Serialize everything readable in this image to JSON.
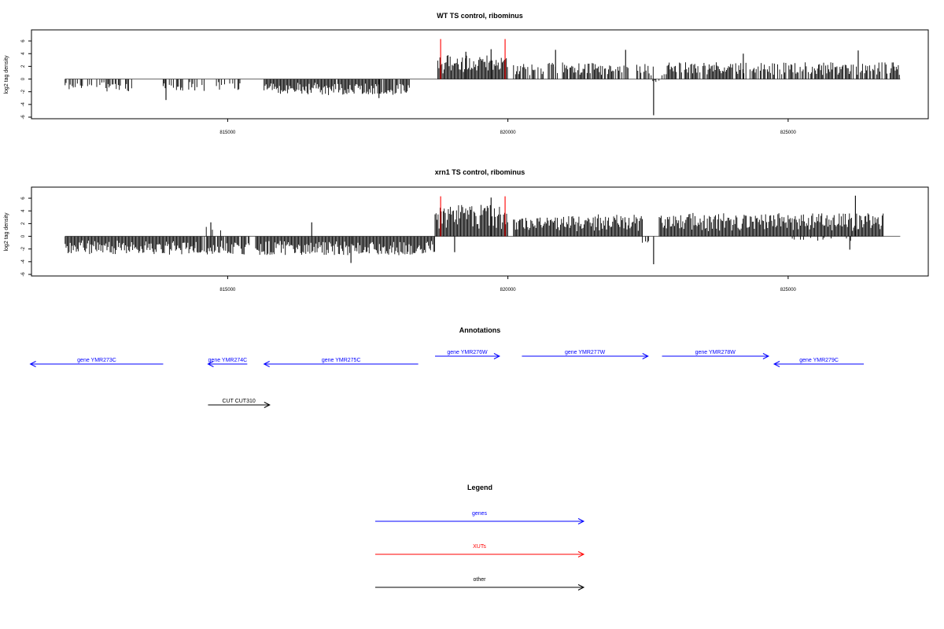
{
  "colors": {
    "gene": "#0000ff",
    "xut": "#ff0000",
    "other": "#000000",
    "bar": "#000000"
  },
  "chart_data": [
    {
      "type": "bar",
      "title": "WT TS control, ribominus",
      "ylabel": "log2 tag density",
      "ylim": [
        -6,
        7
      ],
      "yticks": [
        -6,
        -4,
        -2,
        0,
        2,
        4,
        6
      ],
      "xlim": [
        811500,
        827500
      ],
      "xticks": [
        815000,
        820000,
        825000
      ],
      "xtick_labels": [
        "815000",
        "820000",
        "825000"
      ],
      "baseline_range": [
        812100,
        827000
      ],
      "markers": [
        {
          "x": 818800,
          "y": 6.3,
          "color": "#ff0000"
        },
        {
          "x": 819950,
          "y": 6.3,
          "color": "#ff0000"
        }
      ],
      "segments": [
        {
          "start": 812100,
          "end": 813300,
          "sign": -1,
          "mag": 1.7,
          "density": 0.55,
          "seed": 11
        },
        {
          "start": 813850,
          "end": 814600,
          "sign": -1,
          "mag": 1.7,
          "density": 0.45,
          "seed": 12
        },
        {
          "start": 814800,
          "end": 815300,
          "sign": -1,
          "mag": 1.5,
          "density": 0.35,
          "seed": 13
        },
        {
          "start": 815650,
          "end": 818250,
          "sign": -1,
          "mag": 2.2,
          "density": 0.95,
          "seed": 14
        },
        {
          "start": 818750,
          "end": 820000,
          "sign": 1,
          "mag": 3.3,
          "density": 1.0,
          "seed": 15
        },
        {
          "start": 820100,
          "end": 822150,
          "sign": 1,
          "mag": 2.3,
          "density": 0.7,
          "seed": 16
        },
        {
          "start": 822300,
          "end": 822600,
          "sign": 1,
          "mag": 2.2,
          "density": 0.5,
          "seed": 17
        },
        {
          "start": 822550,
          "end": 822700,
          "sign": -1,
          "mag": 0.5,
          "density": 0.2,
          "seed": 18
        },
        {
          "start": 822750,
          "end": 827000,
          "sign": 1,
          "mag": 2.3,
          "density": 0.75,
          "seed": 19
        }
      ],
      "spikes": [
        {
          "x": 822600,
          "y": -5.7
        },
        {
          "x": 813900,
          "y": -3.3
        },
        {
          "x": 817700,
          "y": -3.0
        },
        {
          "x": 819250,
          "y": 4.3
        },
        {
          "x": 819700,
          "y": 4.7
        },
        {
          "x": 820850,
          "y": 4.6
        },
        {
          "x": 822100,
          "y": 4.6
        },
        {
          "x": 824200,
          "y": 4.0
        },
        {
          "x": 826250,
          "y": 4.5
        }
      ]
    },
    {
      "type": "bar",
      "title": "xrn1 TS control, ribominus",
      "ylabel": "log2 tag density",
      "ylim": [
        -6,
        7
      ],
      "yticks": [
        -6,
        -4,
        -2,
        0,
        2,
        4,
        6
      ],
      "xlim": [
        811500,
        827500
      ],
      "xticks": [
        815000,
        820000,
        825000
      ],
      "xtick_labels": [
        "815000",
        "820000",
        "825000"
      ],
      "baseline_range": [
        812100,
        827000
      ],
      "markers": [
        {
          "x": 818800,
          "y": 6.3,
          "color": "#ff0000"
        },
        {
          "x": 819950,
          "y": 6.3,
          "color": "#ff0000"
        }
      ],
      "segments": [
        {
          "start": 812100,
          "end": 814400,
          "sign": -1,
          "mag": 2.5,
          "density": 1.0,
          "seed": 21
        },
        {
          "start": 814400,
          "end": 815400,
          "sign": -1,
          "mag": 2.5,
          "density": 0.9,
          "seed": 22
        },
        {
          "start": 814400,
          "end": 814900,
          "sign": 1,
          "mag": 1.5,
          "density": 0.2,
          "seed": 23
        },
        {
          "start": 815500,
          "end": 818700,
          "sign": -1,
          "mag": 2.6,
          "density": 1.0,
          "seed": 24
        },
        {
          "start": 818700,
          "end": 820000,
          "sign": 1,
          "mag": 4.3,
          "density": 1.0,
          "seed": 25
        },
        {
          "start": 820100,
          "end": 822400,
          "sign": 1,
          "mag": 3.0,
          "density": 1.0,
          "seed": 26
        },
        {
          "start": 822700,
          "end": 826700,
          "sign": 1,
          "mag": 3.2,
          "density": 1.0,
          "seed": 27
        },
        {
          "start": 822400,
          "end": 822700,
          "sign": -1,
          "mag": 1.0,
          "density": 0.3,
          "seed": 28
        },
        {
          "start": 824800,
          "end": 826500,
          "sign": -1,
          "mag": 0.8,
          "density": 0.15,
          "seed": 29
        }
      ],
      "spikes": [
        {
          "x": 822600,
          "y": -4.4
        },
        {
          "x": 819050,
          "y": -2.5
        },
        {
          "x": 816500,
          "y": 2.2
        },
        {
          "x": 814700,
          "y": 2.2
        },
        {
          "x": 817200,
          "y": -4.2
        },
        {
          "x": 826200,
          "y": 6.4
        },
        {
          "x": 819700,
          "y": 6.1
        },
        {
          "x": 826100,
          "y": -2.1
        }
      ]
    },
    {
      "type": "table",
      "title": "Annotations",
      "xlim": [
        811500,
        827500
      ],
      "features": [
        {
          "name": "gene YMR273C",
          "category": "gene",
          "strand": "-",
          "start": 811480,
          "end": 813850,
          "row": 1
        },
        {
          "name": "gene YMR274C",
          "category": "gene",
          "strand": "-",
          "start": 814650,
          "end": 815350,
          "row": 1
        },
        {
          "name": "gene YMR275C",
          "category": "gene",
          "strand": "-",
          "start": 815650,
          "end": 818400,
          "row": 1
        },
        {
          "name": "gene YMR276W",
          "category": "gene",
          "strand": "+",
          "start": 818700,
          "end": 819850,
          "row": 0
        },
        {
          "name": "gene YMR277W",
          "category": "gene",
          "strand": "+",
          "start": 820250,
          "end": 822500,
          "row": 0
        },
        {
          "name": "gene YMR278W",
          "category": "gene",
          "strand": "+",
          "start": 822750,
          "end": 824650,
          "row": 0
        },
        {
          "name": "gene YMR279C",
          "category": "gene",
          "strand": "-",
          "start": 824750,
          "end": 826350,
          "row": 1
        },
        {
          "name": "CUT CUT310",
          "category": "other",
          "strand": "+",
          "start": 814650,
          "end": 815750,
          "row": 2
        }
      ]
    },
    {
      "type": "table",
      "title": "Legend",
      "entries": [
        {
          "label": "genes",
          "category": "gene"
        },
        {
          "label": "XUTs",
          "category": "xut"
        },
        {
          "label": "other",
          "category": "other"
        }
      ]
    }
  ]
}
